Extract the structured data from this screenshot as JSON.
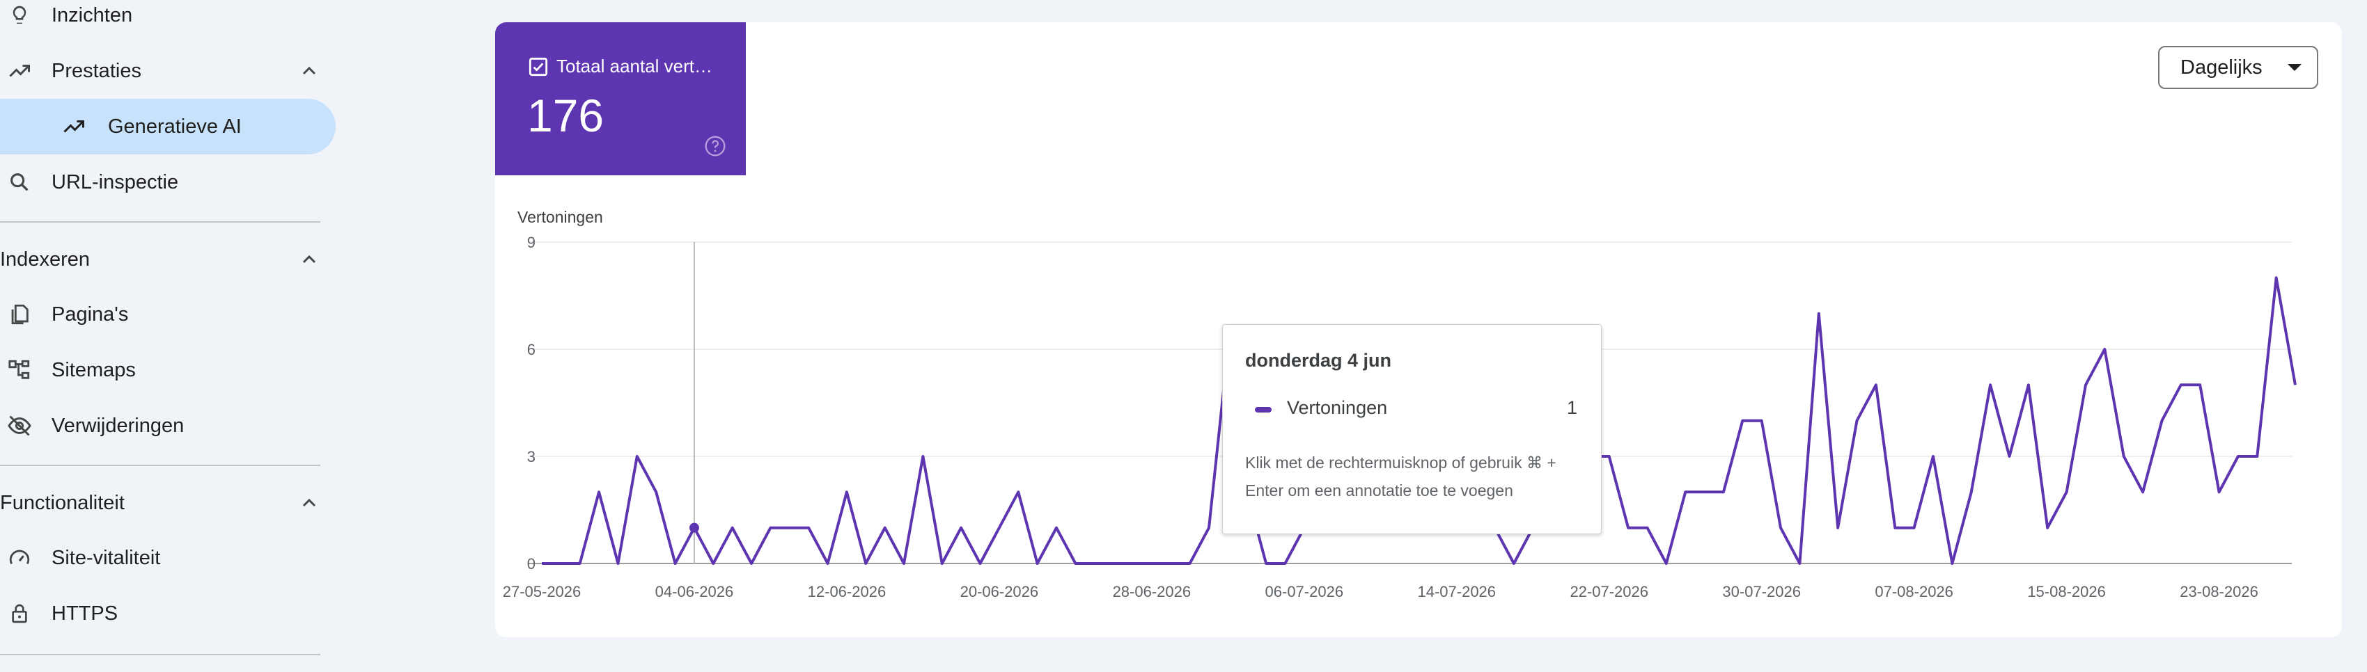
{
  "sidebar": {
    "items": [
      {
        "label": "Inzichten",
        "icon": "lightbulb-icon"
      },
      {
        "label": "Prestaties",
        "icon": "trending-up-icon"
      },
      {
        "label": "Generatieve AI",
        "icon": "trending-up-icon",
        "active": true
      },
      {
        "label": "URL-inspectie",
        "icon": "search-icon"
      }
    ],
    "indexing": {
      "title": "Indexeren",
      "items": [
        {
          "label": "Pagina's",
          "icon": "pages-icon"
        },
        {
          "label": "Sitemaps",
          "icon": "sitemap-icon"
        },
        {
          "label": "Verwijderingen",
          "icon": "eye-off-icon"
        }
      ]
    },
    "functionality": {
      "title": "Functionaliteit",
      "items": [
        {
          "label": "Site-vitaliteit",
          "icon": "gauge-icon"
        },
        {
          "label": "HTTPS",
          "icon": "lock-icon"
        }
      ]
    }
  },
  "metric": {
    "label": "Totaal aantal vert…",
    "value": "176"
  },
  "dropdown": {
    "label": "Dagelijks"
  },
  "tooltip": {
    "date": "donderdag 4 jun",
    "series": "Vertoningen",
    "value": "1",
    "hint": "Klik met de rechtermuisknop of gebruik ⌘ + Enter om een annotatie toe te voegen"
  },
  "colors": {
    "accent": "#5e35b1",
    "active_nav": "#c9e2fb",
    "background": "#f0f4f9"
  },
  "chart_data": {
    "type": "line",
    "ylabel": "Vertoningen",
    "ylim": [
      0,
      9
    ],
    "yticks": [
      "0",
      "3",
      "6",
      "9"
    ],
    "xticks": [
      "27-05-2026",
      "04-06-2026",
      "12-06-2026",
      "20-06-2026",
      "28-06-2026",
      "06-07-2026",
      "14-07-2026",
      "22-07-2026",
      "30-07-2026",
      "07-08-2026",
      "15-08-2026",
      "23-08-2026"
    ],
    "start_date": "2026-05-27",
    "series": [
      {
        "name": "Vertoningen",
        "values": [
          0,
          0,
          0,
          2,
          0,
          3,
          2,
          0,
          1,
          0,
          1,
          0,
          1,
          1,
          1,
          0,
          2,
          0,
          1,
          0,
          3,
          0,
          1,
          0,
          1,
          2,
          0,
          1,
          0,
          0,
          0,
          0,
          0,
          0,
          0,
          1,
          6,
          2,
          0,
          0,
          1,
          2,
          3,
          2,
          3,
          5,
          3,
          3,
          1,
          3,
          1,
          0,
          1,
          1,
          1,
          3,
          3,
          1,
          1,
          0,
          2,
          2,
          2,
          4,
          4,
          1,
          0,
          7,
          1,
          4,
          5,
          1,
          1,
          3,
          0,
          2,
          5,
          3,
          5,
          1,
          2,
          5,
          6,
          3,
          2,
          4,
          5,
          5,
          2,
          3,
          3,
          8,
          5
        ]
      }
    ],
    "highlight": {
      "date": "04-06-2026",
      "value": 1
    }
  }
}
